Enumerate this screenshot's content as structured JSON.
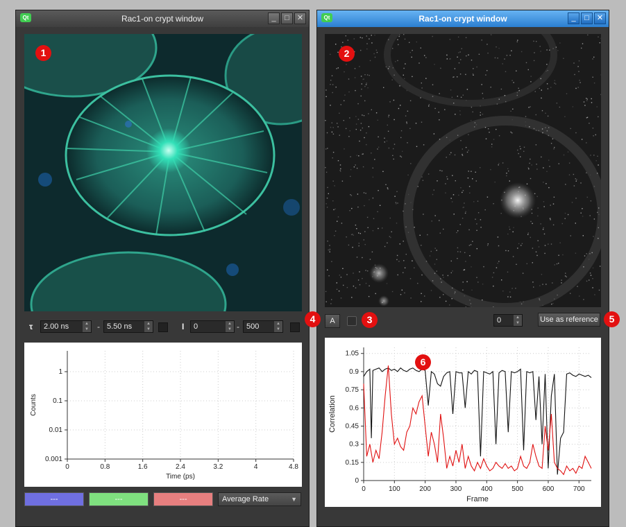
{
  "left_window": {
    "title": "Rac1-on crypt window",
    "badge": "1",
    "tau_symbol": "τ",
    "tau_min": "2.00 ns",
    "tau_max": "5.50 ns",
    "intensity_symbol": "I",
    "intensity_min": "0",
    "intensity_max": "500",
    "range_separator": "-",
    "decay_plot": {
      "xlabel": "Time (ps)",
      "ylabel": "Counts",
      "x_ticks": [
        "0",
        "0.8",
        "1.6",
        "2.4",
        "3.2",
        "4",
        "4.8"
      ],
      "y_ticks": [
        "1",
        "0.1",
        "0.01",
        "0.001"
      ]
    },
    "swatches": [
      {
        "label": "---",
        "color": "#6f6fe0"
      },
      {
        "label": "---",
        "color": "#7fe07f"
      },
      {
        "label": "---",
        "color": "#e77f7f"
      }
    ],
    "mode_select": "Average Rate"
  },
  "right_window": {
    "title": "Rac1-on crypt window",
    "badge": "2",
    "auto_button": "A",
    "frame_value": "0",
    "reference_button": "Use as reference",
    "callouts": {
      "checkbox": "3",
      "auto": "4",
      "reference": "5",
      "plot": "6"
    },
    "chart_data": {
      "type": "line",
      "xlabel": "Frame",
      "ylabel": "Correlation",
      "x_ticks": [
        0,
        100,
        200,
        300,
        400,
        500,
        600,
        700
      ],
      "y_ticks": [
        0,
        0.15,
        0.3,
        0.45,
        0.6,
        0.75,
        0.9,
        1.05
      ],
      "xlim": [
        0,
        740
      ],
      "ylim": [
        0,
        1.1
      ],
      "series": [
        {
          "color": "#111111",
          "x": [
            0,
            10,
            20,
            25,
            30,
            40,
            50,
            60,
            70,
            80,
            90,
            100,
            110,
            120,
            130,
            140,
            150,
            160,
            170,
            180,
            190,
            200,
            210,
            220,
            230,
            240,
            250,
            260,
            270,
            280,
            290,
            300,
            310,
            320,
            330,
            340,
            350,
            360,
            370,
            380,
            390,
            400,
            410,
            420,
            430,
            440,
            450,
            460,
            470,
            480,
            490,
            500,
            510,
            520,
            530,
            540,
            550,
            560,
            570,
            580,
            590,
            600,
            610,
            620,
            630,
            640,
            650,
            660,
            670,
            680,
            690,
            700,
            710,
            720,
            730,
            740
          ],
          "values": [
            0.86,
            0.9,
            0.92,
            0.35,
            0.91,
            0.92,
            0.93,
            0.9,
            0.92,
            0.93,
            0.91,
            0.92,
            0.9,
            0.93,
            0.91,
            0.9,
            0.92,
            0.93,
            0.91,
            0.9,
            0.92,
            0.91,
            0.62,
            0.9,
            0.88,
            0.8,
            0.78,
            0.86,
            0.89,
            0.9,
            0.55,
            0.9,
            0.89,
            0.89,
            0.6,
            0.9,
            0.88,
            0.91,
            0.9,
            0.2,
            0.9,
            0.89,
            0.88,
            0.9,
            0.3,
            0.89,
            0.91,
            0.9,
            0.4,
            0.9,
            0.89,
            0.9,
            0.92,
            0.25,
            0.9,
            0.89,
            0.9,
            0.5,
            0.86,
            0.3,
            0.88,
            0.1,
            0.7,
            0.88,
            0.05,
            0.35,
            0.4,
            0.88,
            0.89,
            0.87,
            0.86,
            0.88,
            0.87,
            0.86,
            0.87,
            0.85
          ]
        },
        {
          "color": "#e01010",
          "x": [
            0,
            10,
            20,
            30,
            40,
            50,
            60,
            70,
            80,
            90,
            100,
            110,
            120,
            130,
            140,
            150,
            160,
            170,
            180,
            190,
            200,
            210,
            220,
            230,
            240,
            250,
            260,
            270,
            280,
            290,
            300,
            310,
            320,
            330,
            340,
            350,
            360,
            370,
            380,
            390,
            400,
            410,
            420,
            430,
            440,
            450,
            460,
            470,
            480,
            490,
            500,
            510,
            520,
            530,
            540,
            550,
            560,
            570,
            580,
            590,
            600,
            610,
            620,
            630,
            640,
            650,
            660,
            670,
            680,
            690,
            700,
            710,
            720,
            730,
            740
          ],
          "values": [
            0.8,
            0.2,
            0.3,
            0.15,
            0.25,
            0.18,
            0.4,
            0.7,
            0.95,
            0.55,
            0.3,
            0.35,
            0.28,
            0.25,
            0.4,
            0.45,
            0.6,
            0.55,
            0.65,
            0.7,
            0.45,
            0.2,
            0.4,
            0.3,
            0.15,
            0.55,
            0.35,
            0.1,
            0.2,
            0.12,
            0.25,
            0.15,
            0.3,
            0.1,
            0.2,
            0.12,
            0.08,
            0.15,
            0.1,
            0.18,
            0.12,
            0.08,
            0.1,
            0.15,
            0.12,
            0.1,
            0.14,
            0.1,
            0.12,
            0.08,
            0.1,
            0.2,
            0.12,
            0.1,
            0.15,
            0.3,
            0.2,
            0.12,
            0.1,
            0.45,
            0.25,
            0.55,
            0.15,
            0.1,
            0.08,
            0.05,
            0.12,
            0.08,
            0.1,
            0.06,
            0.12,
            0.1,
            0.2,
            0.15,
            0.1
          ]
        }
      ]
    }
  }
}
